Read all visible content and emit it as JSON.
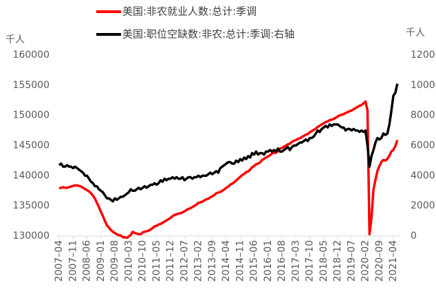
{
  "chart_data": {
    "type": "line",
    "y_unit": "千人",
    "y2_unit": "千人",
    "categories": [
      "2007–04",
      null,
      null,
      null,
      null,
      null,
      null,
      "2007–11",
      null,
      null,
      null,
      null,
      null,
      null,
      "2008–06",
      null,
      null,
      null,
      null,
      null,
      null,
      "2009–01",
      null,
      null,
      null,
      null,
      null,
      null,
      "2009–08",
      null,
      null,
      null,
      null,
      null,
      null,
      "2010–03",
      null,
      null,
      null,
      null,
      null,
      null,
      "2010–10",
      null,
      null,
      null,
      null,
      null,
      null,
      "2011–05",
      null,
      null,
      null,
      null,
      null,
      null,
      "2011–12",
      null,
      null,
      null,
      null,
      null,
      null,
      "2012–07",
      null,
      null,
      null,
      null,
      null,
      null,
      "2013–02",
      null,
      null,
      null,
      null,
      null,
      null,
      "2013–09",
      null,
      null,
      null,
      null,
      null,
      null,
      "2014–04",
      null,
      null,
      null,
      null,
      null,
      null,
      "2014–11",
      null,
      null,
      null,
      null,
      null,
      null,
      "2015–06",
      null,
      null,
      null,
      null,
      null,
      null,
      "2016–01",
      null,
      null,
      null,
      null,
      null,
      null,
      "2016–08",
      null,
      null,
      null,
      null,
      null,
      null,
      "2017–03",
      null,
      null,
      null,
      null,
      null,
      null,
      "2017–10",
      null,
      null,
      null,
      null,
      null,
      null,
      "2018–05",
      null,
      null,
      null,
      null,
      null,
      null,
      "2018–12",
      null,
      null,
      null,
      null,
      null,
      null,
      "2019–07",
      null,
      null,
      null,
      null,
      null,
      null,
      "2020–02",
      null,
      null,
      null,
      null,
      null,
      null,
      "2020–09",
      null,
      null,
      null,
      null,
      null,
      null,
      "2021–04",
      null,
      null
    ],
    "series": [
      {
        "name": "美国:非农就业人数:总计:季调",
        "color": "#ff0000",
        "axis": "y",
        "values": [
          137900,
          138000,
          138100,
          138000,
          138000,
          138100,
          138200,
          138300,
          138400,
          138400,
          138300,
          138200,
          138000,
          137800,
          137600,
          137400,
          137100,
          136700,
          136200,
          135500,
          134800,
          134000,
          133300,
          132500,
          131800,
          131400,
          131000,
          130700,
          130500,
          130300,
          130100,
          130100,
          129800,
          129800,
          129700,
          129900,
          130200,
          130700,
          130500,
          130400,
          130300,
          130300,
          130600,
          130700,
          130800,
          130900,
          131100,
          131300,
          131600,
          131700,
          131900,
          132000,
          132200,
          132400,
          132600,
          132800,
          133000,
          133300,
          133500,
          133600,
          133700,
          133800,
          133900,
          134100,
          134300,
          134500,
          134600,
          134800,
          135000,
          135200,
          135500,
          135600,
          135700,
          135900,
          136100,
          136200,
          136400,
          136600,
          136800,
          137100,
          137200,
          137300,
          137500,
          137700,
          138000,
          138200,
          138500,
          138700,
          138900,
          139200,
          139500,
          139800,
          140100,
          140300,
          140600,
          140700,
          141000,
          141400,
          141600,
          141900,
          142000,
          142200,
          142600,
          142800,
          143000,
          143200,
          143400,
          143700,
          143800,
          143800,
          144100,
          144500,
          144600,
          144800,
          145000,
          145200,
          145300,
          145600,
          145800,
          145900,
          146100,
          146200,
          146400,
          146600,
          146800,
          146900,
          147200,
          147400,
          147600,
          147800,
          148100,
          148300,
          148500,
          148700,
          148900,
          149000,
          149200,
          149300,
          149400,
          149600,
          149800,
          150000,
          150100,
          150200,
          150400,
          150500,
          150700,
          150800,
          151000,
          151200,
          151400,
          151600,
          151700,
          152000,
          152300,
          150800,
          130300,
          133000,
          137700,
          139300,
          140800,
          141600,
          142300,
          142600,
          142500,
          142800,
          143300,
          144000,
          144300,
          144900,
          145900
        ]
      },
      {
        "name": "美国:职位空缺数:非农:总计:季调:右轴",
        "color": "#000000",
        "axis": "y2",
        "values": [
          4700,
          4800,
          4600,
          4600,
          4700,
          4600,
          4600,
          4500,
          4600,
          4500,
          4400,
          4300,
          4200,
          4000,
          4000,
          3800,
          3600,
          3500,
          3300,
          3300,
          3100,
          3000,
          2900,
          2700,
          2500,
          2500,
          2400,
          2300,
          2500,
          2400,
          2500,
          2600,
          2600,
          2700,
          2800,
          2900,
          3100,
          3000,
          3000,
          3100,
          3200,
          3100,
          3200,
          3300,
          3200,
          3300,
          3400,
          3400,
          3500,
          3400,
          3500,
          3700,
          3600,
          3800,
          3700,
          3800,
          3800,
          3900,
          3800,
          3900,
          3800,
          3800,
          3900,
          3700,
          3800,
          3900,
          3900,
          3800,
          3900,
          3900,
          4000,
          3900,
          4000,
          4000,
          4000,
          4100,
          4200,
          4100,
          4200,
          4300,
          4200,
          4500,
          4600,
          4700,
          4800,
          4900,
          4900,
          4800,
          4800,
          5000,
          4900,
          5100,
          5000,
          5200,
          5100,
          5300,
          5200,
          5500,
          5400,
          5600,
          5400,
          5500,
          5500,
          5400,
          5600,
          5600,
          5700,
          5600,
          5700,
          5600,
          5800,
          5600,
          5600,
          5700,
          5800,
          5900,
          5700,
          5900,
          6000,
          6000,
          6100,
          6200,
          6200,
          6300,
          6400,
          6300,
          6500,
          6500,
          6600,
          6800,
          7000,
          6900,
          7100,
          7200,
          7300,
          7200,
          7400,
          7300,
          7400,
          7400,
          7400,
          7300,
          7200,
          7200,
          7000,
          7100,
          7100,
          7000,
          7100,
          7000,
          7000,
          6900,
          7000,
          6900,
          7000,
          6000,
          4600,
          5300,
          5700,
          6200,
          6500,
          6400,
          6500,
          6800,
          6700,
          6800,
          7400,
          8300,
          9300,
          9500,
          10100
        ]
      }
    ],
    "ylim": [
      130000,
      160000
    ],
    "yticks": [
      130000,
      135000,
      140000,
      145000,
      150000,
      155000,
      160000
    ],
    "y2lim": [
      0,
      12000
    ],
    "y2ticks": [
      0,
      2000,
      4000,
      6000,
      8000,
      10000,
      12000
    ],
    "grid": false,
    "legend": "top"
  }
}
